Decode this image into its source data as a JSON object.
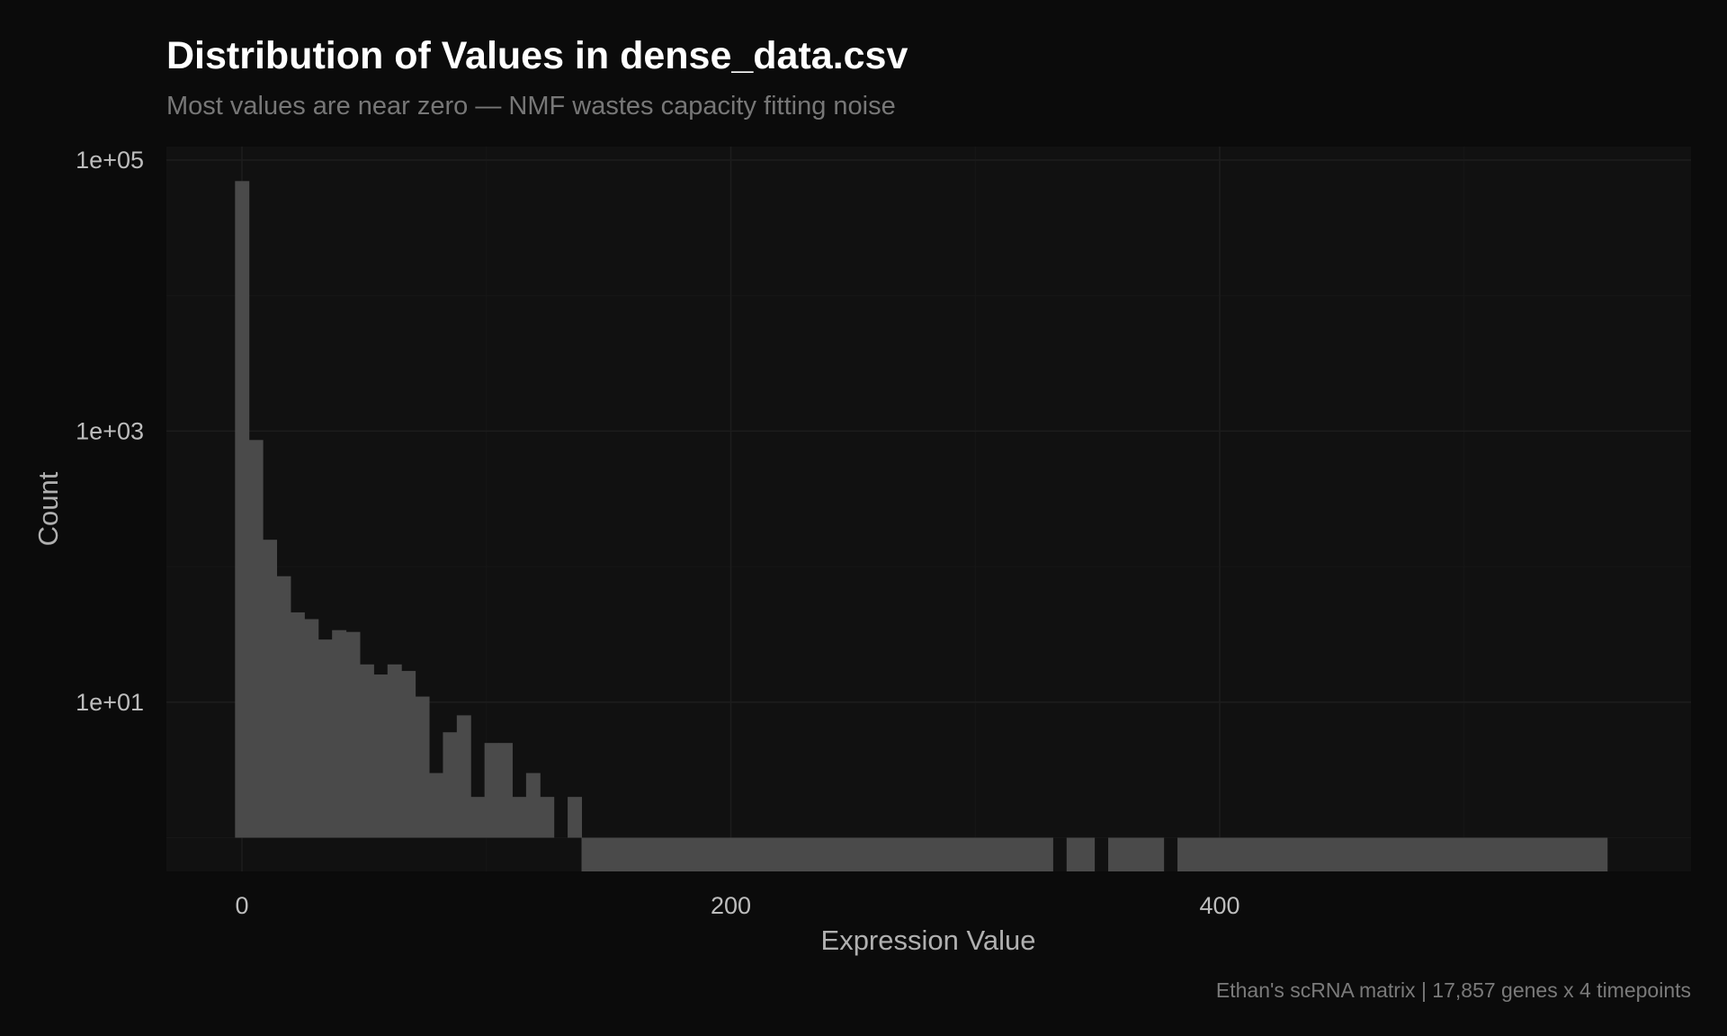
{
  "chart_data": {
    "type": "bar",
    "subtype": "histogram",
    "title": "Distribution of Values in dense_data.csv",
    "subtitle": "Most values are near zero — NMF wastes capacity fitting noise",
    "caption": "Ethan's scRNA matrix | 17,857 genes x 4 timepoints",
    "xlabel": "Expression Value",
    "ylabel": "Count",
    "y_scale": "log10",
    "xlim": [
      -30,
      595
    ],
    "ylim_log10": [
      -0.24,
      5.1
    ],
    "x_ticks": [
      {
        "value": 0,
        "label": "0"
      },
      {
        "value": 200,
        "label": "200"
      },
      {
        "value": 400,
        "label": "400"
      }
    ],
    "x_minor_ticks": [
      100,
      300,
      500
    ],
    "y_ticks": [
      {
        "value": 100000,
        "label": "1e+05"
      },
      {
        "value": 1000,
        "label": "1e+03"
      },
      {
        "value": 10,
        "label": "1e+01"
      }
    ],
    "y_minor_ticks": [
      10000,
      100,
      1
    ],
    "bin_start": -2.83,
    "bin_width": 5.67,
    "counts": [
      70000,
      860,
      158,
      85,
      46,
      41,
      29,
      34,
      33,
      19,
      16,
      19,
      17,
      11,
      3,
      6,
      8,
      2,
      5,
      5,
      2,
      3,
      2,
      1,
      2,
      0,
      0,
      0,
      0,
      0,
      0,
      0,
      0,
      0,
      0,
      0,
      0,
      0,
      0,
      0,
      0,
      0,
      0,
      0,
      0,
      0,
      0,
      0,
      0,
      0,
      0,
      0,
      0,
      0,
      0,
      0,
      0,
      0,
      0,
      1,
      0,
      0,
      1,
      0,
      0,
      0,
      0,
      1,
      0,
      0,
      0,
      0,
      0,
      0,
      0,
      0,
      0,
      0,
      0,
      0,
      0,
      0,
      0,
      0,
      0,
      0,
      0,
      0,
      0,
      0,
      0,
      0,
      0,
      0,
      0,
      0,
      0,
      0,
      0
    ],
    "grid": true,
    "colors": {
      "background": "#0b0b0b",
      "panel": "#111111",
      "bar": "#4a4a4a",
      "grid": "#1d1d1d"
    }
  }
}
